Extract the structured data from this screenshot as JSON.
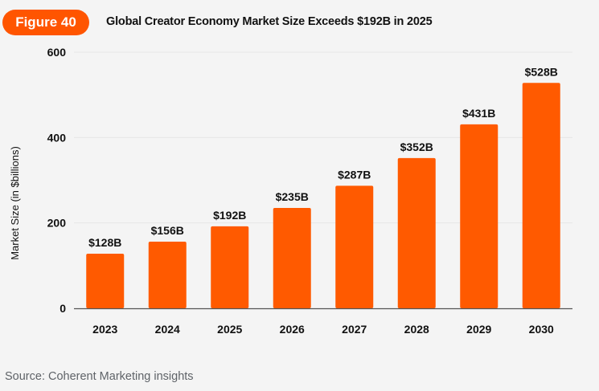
{
  "header": {
    "badge": "Figure 40",
    "title": "Global Creator Economy Market Size Exceeds $192B in 2025"
  },
  "footer": {
    "source": "Source: Coherent Marketing insights"
  },
  "colors": {
    "bar": "#ff5a00",
    "badge": "#ff5500",
    "grid": "#e6e6e6",
    "axis": "#555555"
  },
  "chart_data": {
    "type": "bar",
    "title": "Global Creator Economy Market Size Exceeds $192B in 2025",
    "xlabel": "",
    "ylabel": "Market Size (in $billions)",
    "categories": [
      "2023",
      "2024",
      "2025",
      "2026",
      "2027",
      "2028",
      "2029",
      "2030"
    ],
    "values": [
      128,
      156,
      192,
      235,
      287,
      352,
      431,
      528
    ],
    "data_labels": [
      "$128B",
      "$156B",
      "$192B",
      "$235B",
      "$287B",
      "$352B",
      "$431B",
      "$528B"
    ],
    "ylim": [
      0,
      600
    ],
    "yticks": [
      0,
      200,
      400,
      600
    ],
    "grid": true,
    "legend": "none"
  }
}
